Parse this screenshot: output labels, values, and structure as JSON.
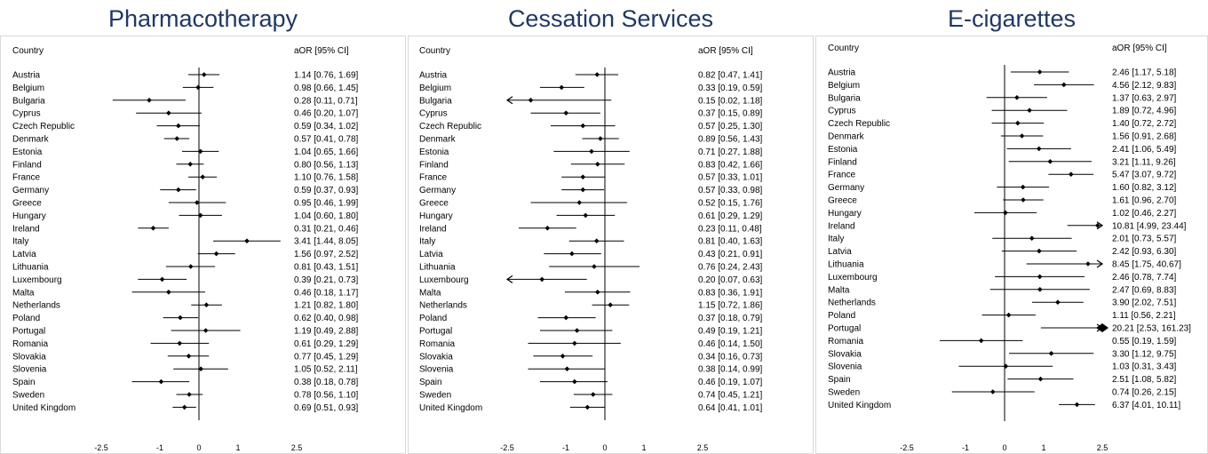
{
  "chart_data": [
    {
      "type": "forest",
      "title": "Pharmacotherapy",
      "country_header": "Country",
      "value_header": "aOR [95% CI]",
      "x_ticks": [
        "-2.5",
        "-1",
        "0",
        "1",
        "2.5"
      ],
      "rows": [
        {
          "country": "Austria",
          "label": "1.14 [0.76, 1.69]",
          "est": 1.14,
          "lo": 0.76,
          "hi": 1.69
        },
        {
          "country": "Belgium",
          "label": "0.98 [0.66, 1.45]",
          "est": 0.98,
          "lo": 0.66,
          "hi": 1.45
        },
        {
          "country": "Bulgaria",
          "label": "0.28 [0.11, 0.71]",
          "est": 0.28,
          "lo": 0.11,
          "hi": 0.71
        },
        {
          "country": "Cyprus",
          "label": "0.46 [0.20, 1.07]",
          "est": 0.46,
          "lo": 0.2,
          "hi": 1.07
        },
        {
          "country": "Czech Republic",
          "label": "0.59 [0.34, 1.02]",
          "est": 0.59,
          "lo": 0.34,
          "hi": 1.02
        },
        {
          "country": "Denmark",
          "label": "0.57 [0.41, 0.78]",
          "est": 0.57,
          "lo": 0.41,
          "hi": 0.78
        },
        {
          "country": "Estonia",
          "label": "1.04 [0.65, 1.66]",
          "est": 1.04,
          "lo": 0.65,
          "hi": 1.66
        },
        {
          "country": "Finland",
          "label": "0.80 [0.56, 1.13]",
          "est": 0.8,
          "lo": 0.56,
          "hi": 1.13
        },
        {
          "country": "France",
          "label": "1.10 [0.76, 1.58]",
          "est": 1.1,
          "lo": 0.76,
          "hi": 1.58
        },
        {
          "country": "Germany",
          "label": "0.59 [0.37, 0.93]",
          "est": 0.59,
          "lo": 0.37,
          "hi": 0.93
        },
        {
          "country": "Greece",
          "label": "0.95 [0.46, 1.99]",
          "est": 0.95,
          "lo": 0.46,
          "hi": 1.99
        },
        {
          "country": "Hungary",
          "label": "1.04 [0.60, 1.80]",
          "est": 1.04,
          "lo": 0.6,
          "hi": 1.8
        },
        {
          "country": "Ireland",
          "label": "0.31 [0.21, 0.46]",
          "est": 0.31,
          "lo": 0.21,
          "hi": 0.46
        },
        {
          "country": "Italy",
          "label": "3.41 [1.44, 8.05]",
          "est": 3.41,
          "lo": 1.44,
          "hi": 8.05
        },
        {
          "country": "Latvia",
          "label": "1.56 [0.97, 2.52]",
          "est": 1.56,
          "lo": 0.97,
          "hi": 2.52
        },
        {
          "country": "Lithuania",
          "label": "0.81 [0.43, 1.51]",
          "est": 0.81,
          "lo": 0.43,
          "hi": 1.51
        },
        {
          "country": "Luxembourg",
          "label": "0.39 [0.21, 0.73]",
          "est": 0.39,
          "lo": 0.21,
          "hi": 0.73
        },
        {
          "country": "Malta",
          "label": "0.46 [0.18, 1.17]",
          "est": 0.46,
          "lo": 0.18,
          "hi": 1.17
        },
        {
          "country": "Netherlands",
          "label": "1.21 [0.82, 1.80]",
          "est": 1.21,
          "lo": 0.82,
          "hi": 1.8
        },
        {
          "country": "Poland",
          "label": "0.62 [0.40, 0.98]",
          "est": 0.62,
          "lo": 0.4,
          "hi": 0.98
        },
        {
          "country": "Portugal",
          "label": "1.19 [0.49, 2.88]",
          "est": 1.19,
          "lo": 0.49,
          "hi": 2.88
        },
        {
          "country": "Romania",
          "label": "0.61 [0.29, 1.29]",
          "est": 0.61,
          "lo": 0.29,
          "hi": 1.29
        },
        {
          "country": "Slovakia",
          "label": "0.77 [0.45, 1.29]",
          "est": 0.77,
          "lo": 0.45,
          "hi": 1.29
        },
        {
          "country": "Slovenia",
          "label": "1.05 [0.52, 2.11]",
          "est": 1.05,
          "lo": 0.52,
          "hi": 2.11
        },
        {
          "country": "Spain",
          "label": "0.38 [0.18, 0.78]",
          "est": 0.38,
          "lo": 0.18,
          "hi": 0.78
        },
        {
          "country": "Sweden",
          "label": "0.78 [0.56, 1.10]",
          "est": 0.78,
          "lo": 0.56,
          "hi": 1.1
        },
        {
          "country": "United Kingdom",
          "label": "0.69 [0.51, 0.93]",
          "est": 0.69,
          "lo": 0.51,
          "hi": 0.93
        }
      ]
    },
    {
      "type": "forest",
      "title": "Cessation Services",
      "country_header": "Country",
      "value_header": "aOR [95% CI]",
      "x_ticks": [
        "-2.5",
        "-1",
        "0",
        "1",
        "2.5"
      ],
      "rows": [
        {
          "country": "Austria",
          "label": "0.82 [0.47, 1.41]",
          "est": 0.82,
          "lo": 0.47,
          "hi": 1.41
        },
        {
          "country": "Belgium",
          "label": "0.33 [0.19, 0.59]",
          "est": 0.33,
          "lo": 0.19,
          "hi": 0.59
        },
        {
          "country": "Bulgaria",
          "label": "0.15 [0.02, 1.18]",
          "est": 0.15,
          "lo": 0.02,
          "hi": 1.18
        },
        {
          "country": "Cyprus",
          "label": "0.37 [0.15, 0.89]",
          "est": 0.37,
          "lo": 0.15,
          "hi": 0.89
        },
        {
          "country": "Czech Republic",
          "label": "0.57 [0.25, 1.30]",
          "est": 0.57,
          "lo": 0.25,
          "hi": 1.3
        },
        {
          "country": "Denmark",
          "label": "0.89 [0.56, 1.43]",
          "est": 0.89,
          "lo": 0.56,
          "hi": 1.43
        },
        {
          "country": "Estonia",
          "label": "0.71 [0.27, 1.88]",
          "est": 0.71,
          "lo": 0.27,
          "hi": 1.88
        },
        {
          "country": "Finland",
          "label": "0.83 [0.42, 1.66]",
          "est": 0.83,
          "lo": 0.42,
          "hi": 1.66
        },
        {
          "country": "France",
          "label": "0.57 [0.33, 1.01]",
          "est": 0.57,
          "lo": 0.33,
          "hi": 1.01
        },
        {
          "country": "Germany",
          "label": "0.57 [0.33, 0.98]",
          "est": 0.57,
          "lo": 0.33,
          "hi": 0.98
        },
        {
          "country": "Greece",
          "label": "0.52 [0.15, 1.76]",
          "est": 0.52,
          "lo": 0.15,
          "hi": 1.76
        },
        {
          "country": "Hungary",
          "label": "0.61 [0.29, 1.29]",
          "est": 0.61,
          "lo": 0.29,
          "hi": 1.29
        },
        {
          "country": "Ireland",
          "label": "0.23 [0.11, 0.48]",
          "est": 0.23,
          "lo": 0.11,
          "hi": 0.48
        },
        {
          "country": "Italy",
          "label": "0.81 [0.40, 1.63]",
          "est": 0.81,
          "lo": 0.4,
          "hi": 1.63
        },
        {
          "country": "Latvia",
          "label": "0.43 [0.21, 0.91]",
          "est": 0.43,
          "lo": 0.21,
          "hi": 0.91
        },
        {
          "country": "Lithuania",
          "label": "0.76 [0.24, 2.43]",
          "est": 0.76,
          "lo": 0.24,
          "hi": 2.43
        },
        {
          "country": "Luxembourg",
          "label": "0.20 [0.07, 0.63]",
          "est": 0.2,
          "lo": 0.07,
          "hi": 0.63
        },
        {
          "country": "Malta",
          "label": "0.83 [0.36, 1.91]",
          "est": 0.83,
          "lo": 0.36,
          "hi": 1.91
        },
        {
          "country": "Netherlands",
          "label": "1.15 [0.72, 1.86]",
          "est": 1.15,
          "lo": 0.72,
          "hi": 1.86
        },
        {
          "country": "Poland",
          "label": "0.37 [0.18, 0.79]",
          "est": 0.37,
          "lo": 0.18,
          "hi": 0.79
        },
        {
          "country": "Portugal",
          "label": "0.49 [0.19, 1.21]",
          "est": 0.49,
          "lo": 0.19,
          "hi": 1.21
        },
        {
          "country": "Romania",
          "label": "0.46 [0.14, 1.50]",
          "est": 0.46,
          "lo": 0.14,
          "hi": 1.5
        },
        {
          "country": "Slovakia",
          "label": "0.34 [0.16, 0.73]",
          "est": 0.34,
          "lo": 0.16,
          "hi": 0.73
        },
        {
          "country": "Slovenia",
          "label": "0.38 [0.14, 0.99]",
          "est": 0.38,
          "lo": 0.14,
          "hi": 0.99
        },
        {
          "country": "Spain",
          "label": "0.46 [0.19, 1.07]",
          "est": 0.46,
          "lo": 0.19,
          "hi": 1.07
        },
        {
          "country": "Sweden",
          "label": "0.74 [0.45, 1.21]",
          "est": 0.74,
          "lo": 0.45,
          "hi": 1.21
        },
        {
          "country": "United Kingdom",
          "label": "0.64 [0.41, 1.01]",
          "est": 0.64,
          "lo": 0.41,
          "hi": 1.01
        }
      ]
    },
    {
      "type": "forest",
      "title": "E-cigarettes",
      "country_header": "Country",
      "value_header": "aOR [95% CI]",
      "x_ticks": [
        "-2.5",
        "-1",
        "0",
        "1",
        "2.5"
      ],
      "rows": [
        {
          "country": "Austria",
          "label": "2.46 [1.17, 5.18]",
          "est": 2.46,
          "lo": 1.17,
          "hi": 5.18
        },
        {
          "country": "Belgium",
          "label": "4.56 [2.12, 9.83]",
          "est": 4.56,
          "lo": 2.12,
          "hi": 9.83
        },
        {
          "country": "Bulgaria",
          "label": "1.37 [0.63, 2.97]",
          "est": 1.37,
          "lo": 0.63,
          "hi": 2.97
        },
        {
          "country": "Cyprus",
          "label": "1.89 [0.72, 4.96]",
          "est": 1.89,
          "lo": 0.72,
          "hi": 4.96
        },
        {
          "country": "Czech Republic",
          "label": "1.40 [0.72, 2.72]",
          "est": 1.4,
          "lo": 0.72,
          "hi": 2.72
        },
        {
          "country": "Denmark",
          "label": "1.56 [0.91, 2.68]",
          "est": 1.56,
          "lo": 0.91,
          "hi": 2.68
        },
        {
          "country": "Estonia",
          "label": "2.41 [1.06, 5.49]",
          "est": 2.41,
          "lo": 1.06,
          "hi": 5.49
        },
        {
          "country": "Finland",
          "label": "3.21 [1.11, 9.26]",
          "est": 3.21,
          "lo": 1.11,
          "hi": 9.26
        },
        {
          "country": "France",
          "label": "5.47 [3.07, 9.72]",
          "est": 5.47,
          "lo": 3.07,
          "hi": 9.72
        },
        {
          "country": "Germany",
          "label": "1.60 [0.82, 3.12]",
          "est": 1.6,
          "lo": 0.82,
          "hi": 3.12
        },
        {
          "country": "Greece",
          "label": "1.61 [0.96, 2.70]",
          "est": 1.61,
          "lo": 0.96,
          "hi": 2.7
        },
        {
          "country": "Hungary",
          "label": "1.02 [0.46, 2.27]",
          "est": 1.02,
          "lo": 0.46,
          "hi": 2.27
        },
        {
          "country": "Ireland",
          "label": "10.81 [4.99, 23.44]",
          "est": 10.81,
          "lo": 4.99,
          "hi": 23.44
        },
        {
          "country": "Italy",
          "label": "2.01 [0.73, 5.57]",
          "est": 2.01,
          "lo": 0.73,
          "hi": 5.57
        },
        {
          "country": "Latvia",
          "label": "2.42 [0.93, 6.30]",
          "est": 2.42,
          "lo": 0.93,
          "hi": 6.3
        },
        {
          "country": "Lithuania",
          "label": "8.45 [1.75, 40.67]",
          "est": 8.45,
          "lo": 1.75,
          "hi": 40.67
        },
        {
          "country": "Luxembourg",
          "label": "2.46 [0.78, 7.74]",
          "est": 2.46,
          "lo": 0.78,
          "hi": 7.74
        },
        {
          "country": "Malta",
          "label": "2.47 [0.69, 8.83]",
          "est": 2.47,
          "lo": 0.69,
          "hi": 8.83
        },
        {
          "country": "Netherlands",
          "label": "3.90 [2.02, 7.51]",
          "est": 3.9,
          "lo": 2.02,
          "hi": 7.51
        },
        {
          "country": "Poland",
          "label": "1.11 [0.56, 2.21]",
          "est": 1.11,
          "lo": 0.56,
          "hi": 2.21
        },
        {
          "country": "Portugal",
          "label": "20.21 [2.53, 161.23]",
          "est": 20.21,
          "lo": 2.53,
          "hi": 161.23
        },
        {
          "country": "Romania",
          "label": "0.55 [0.19, 1.59]",
          "est": 0.55,
          "lo": 0.19,
          "hi": 1.59
        },
        {
          "country": "Slovakia",
          "label": "3.30 [1.12, 9.75]",
          "est": 3.3,
          "lo": 1.12,
          "hi": 9.75
        },
        {
          "country": "Slovenia",
          "label": "1.03 [0.31, 3.43]",
          "est": 1.03,
          "lo": 0.31,
          "hi": 3.43
        },
        {
          "country": "Spain",
          "label": "2.51 [1.08, 5.82]",
          "est": 2.51,
          "lo": 1.08,
          "hi": 5.82
        },
        {
          "country": "Sweden",
          "label": "0.74 [0.26, 2.15]",
          "est": 0.74,
          "lo": 0.26,
          "hi": 2.15
        },
        {
          "country": "United Kingdom",
          "label": "6.37 [4.01, 10.11]",
          "est": 6.37,
          "lo": 4.01,
          "hi": 10.11
        }
      ]
    }
  ],
  "colors": {
    "title": "#1f3864",
    "text": "#000000",
    "border": "#d9d9d9"
  }
}
